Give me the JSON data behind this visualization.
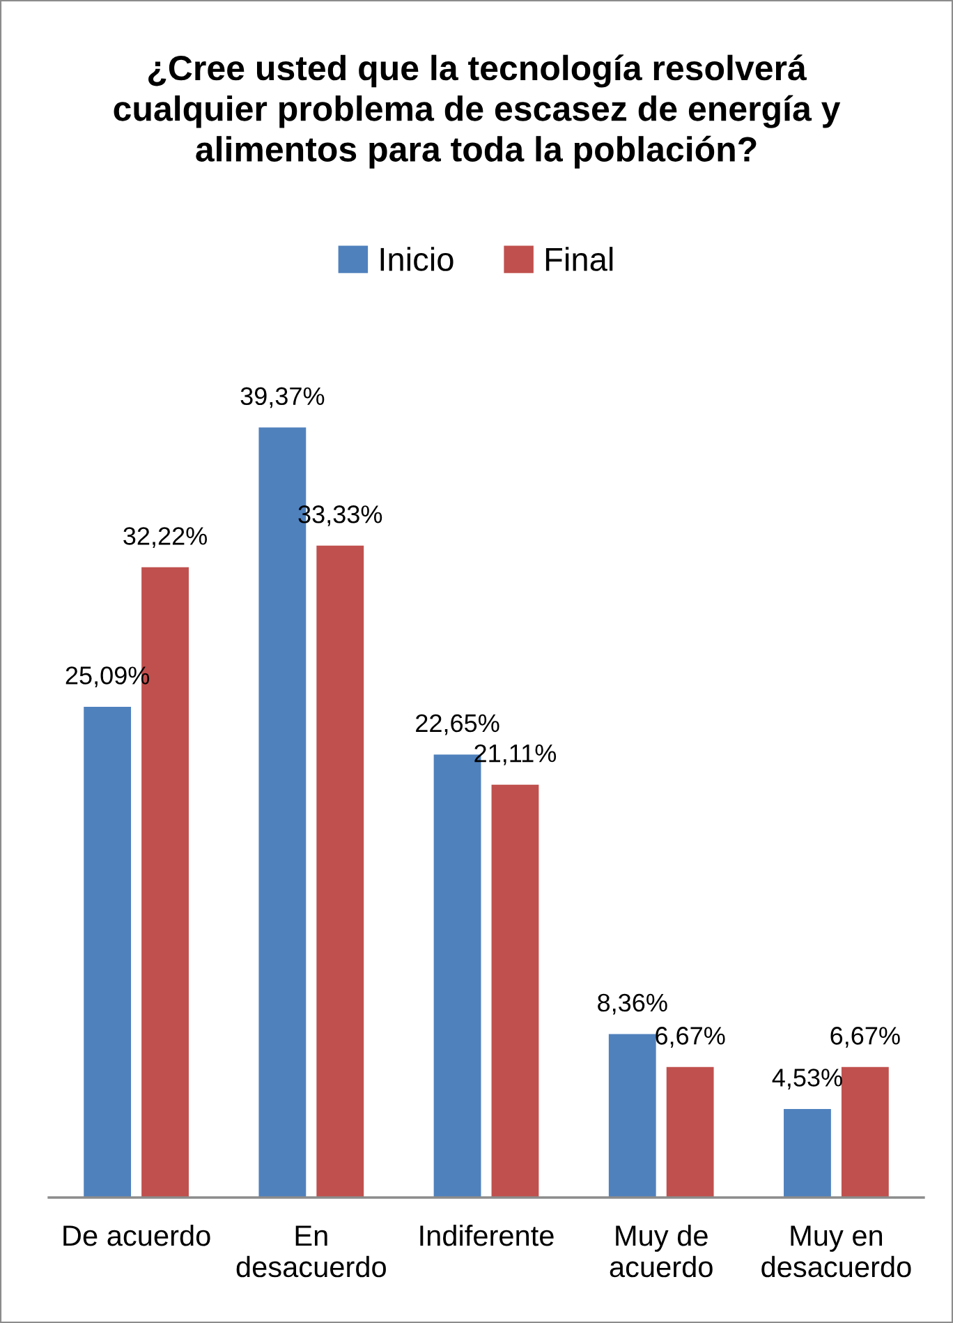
{
  "chart_data": {
    "type": "bar",
    "title": "¿Cree usted que la tecnología resolverá\ncualquier problema de escasez de energía y\nalimentos para toda la población?",
    "categories": [
      "De acuerdo",
      "En\ndesacuerdo",
      "Indiferente",
      "Muy de\nacuerdo",
      "Muy en\ndesacuerdo"
    ],
    "series": [
      {
        "name": "Inicio",
        "color": "#4f81bd",
        "values": [
          25.09,
          39.37,
          22.65,
          8.36,
          4.53
        ],
        "value_labels": [
          "25,09%",
          "39,37%",
          "22,65%",
          "8,36%",
          "4,53%"
        ]
      },
      {
        "name": "Final",
        "color": "#c0504d",
        "values": [
          32.22,
          33.33,
          21.11,
          6.67,
          6.67
        ],
        "value_labels": [
          "32,22%",
          "33,33%",
          "21,11%",
          "6,67%",
          "6,67%"
        ]
      }
    ],
    "tick_labels": "x",
    "legend": "top",
    "grid": false
  }
}
